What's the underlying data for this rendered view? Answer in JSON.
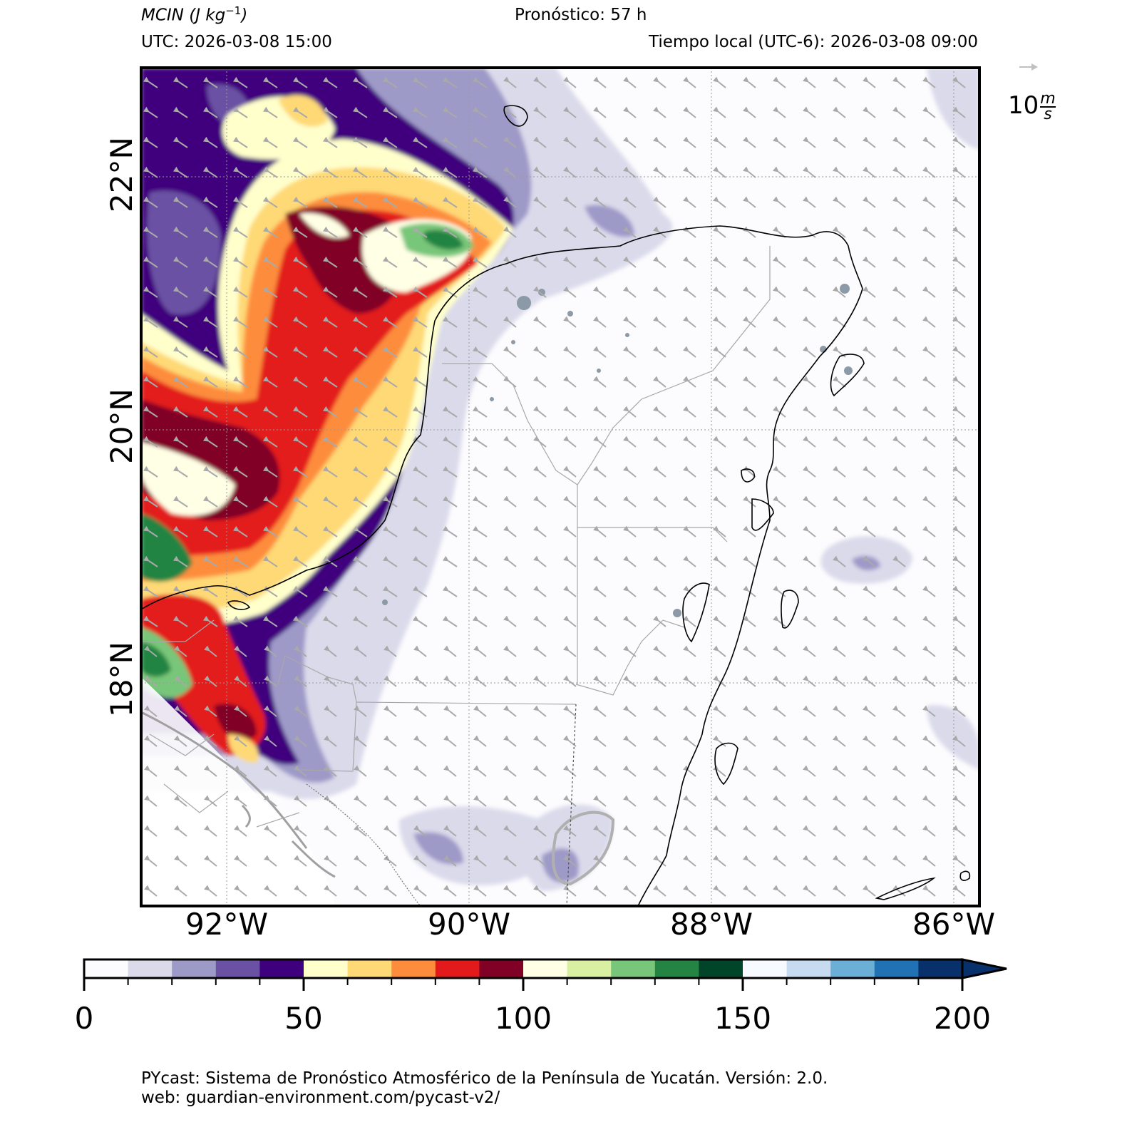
{
  "header": {
    "variable": "MCIN",
    "unit_base": "J kg",
    "unit_exp": "−1",
    "forecast_label": "Pronóstico: 57 h",
    "utc_label": "UTC:  2026-03-08 15:00",
    "local_label": "Tiempo local (UTC-6): 2026-03-08 09:00"
  },
  "map": {
    "lat_labels": [
      "22°N",
      "20°N",
      "18°N"
    ],
    "lon_labels": [
      "92°W",
      "90°W",
      "88°W",
      "86°W"
    ],
    "wind_key": {
      "value": "10",
      "unit_num": "m",
      "unit_den": "s"
    }
  },
  "colorbar": {
    "tick_labels": [
      "0",
      "50",
      "100",
      "150",
      "200"
    ],
    "min": 0,
    "max": 200,
    "step": 10,
    "extend": "max",
    "colors": [
      "#fcfbfd",
      "#dadaeb",
      "#9e9ac8",
      "#6a51a3",
      "#3f007d",
      "#ffffcc",
      "#fed976",
      "#fd8d3c",
      "#e31a1c",
      "#800026",
      "#ffffe5",
      "#d9f0a3",
      "#78c679",
      "#238443",
      "#004529",
      "#f7fbff",
      "#c6dbef",
      "#6baed6",
      "#2171b5",
      "#08306b"
    ]
  },
  "footer": {
    "line1": "PYcast: Sistema de Pronóstico Atmosférico de la Península de Yucatán. Versión: 2.0.",
    "line2": "web: guardian-environment.com/pycast-v2/"
  }
}
